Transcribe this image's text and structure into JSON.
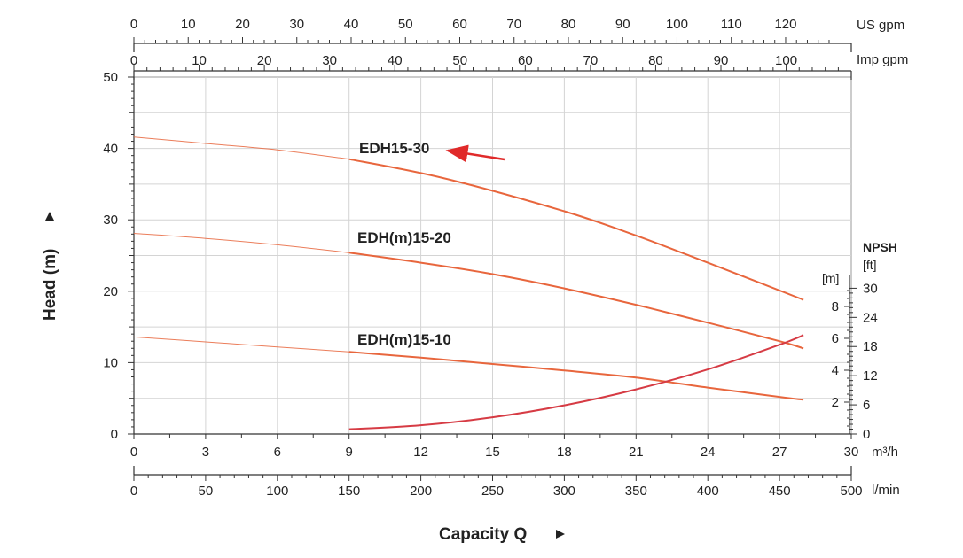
{
  "chart_data": {
    "type": "line",
    "title": "",
    "xlabel": "Capacity Q",
    "ylabel": "Head (m)",
    "x_unit": "m³/h",
    "xlim": [
      0,
      30
    ],
    "ylim": [
      0,
      50
    ],
    "x_ticks": [
      "0",
      "3",
      "6",
      "9",
      "12",
      "15",
      "18",
      "21",
      "24",
      "27",
      "30"
    ],
    "y_ticks": [
      "0",
      "10",
      "20",
      "30",
      "40",
      "50"
    ],
    "grid": true,
    "secondary_axes": {
      "us_gpm": {
        "label": "US gpm",
        "max": 132.086,
        "ticks": [
          "0",
          "10",
          "20",
          "30",
          "40",
          "50",
          "60",
          "70",
          "80",
          "90",
          "100",
          "110",
          "120"
        ]
      },
      "imp_gpm": {
        "label": "Imp gpm",
        "max": 109.985,
        "ticks": [
          "0",
          "10",
          "20",
          "30",
          "40",
          "50",
          "60",
          "70",
          "80",
          "90",
          "100"
        ]
      },
      "l_min": {
        "label": "l/min",
        "max": 500,
        "ticks": [
          "0",
          "50",
          "100",
          "150",
          "200",
          "250",
          "300",
          "350",
          "400",
          "450",
          "500"
        ]
      }
    },
    "npsh_axis": {
      "title": "NPSH",
      "m_label": "[m]",
      "ft_label": "[ft]",
      "m_max": 10,
      "m_ticks": [
        "2",
        "4",
        "6",
        "8"
      ],
      "ft_max": 32.8084,
      "ft_ticks": [
        "0",
        "6",
        "12",
        "18",
        "24",
        "30"
      ]
    },
    "series": [
      {
        "name": "EDH15-30",
        "label": "EDH15-30",
        "extrapolated": [
          [
            0,
            41.6
          ],
          [
            3,
            40.7
          ],
          [
            6,
            39.8
          ],
          [
            9,
            38.5
          ]
        ],
        "values": [
          [
            9,
            38.5
          ],
          [
            13,
            35.8
          ],
          [
            18,
            31.2
          ],
          [
            21,
            27.8
          ],
          [
            24,
            24
          ],
          [
            28,
            18.8
          ]
        ]
      },
      {
        "name": "EDH(m)15-20",
        "label": "EDH(m)15-20",
        "extrapolated": [
          [
            0,
            28.1
          ],
          [
            3,
            27.4
          ],
          [
            6,
            26.5
          ],
          [
            9,
            25.4
          ]
        ],
        "values": [
          [
            9,
            25.4
          ],
          [
            12,
            24
          ],
          [
            15,
            22.4
          ],
          [
            18,
            20.4
          ],
          [
            21,
            18.1
          ],
          [
            24,
            15.6
          ],
          [
            27,
            13
          ],
          [
            28,
            12
          ]
        ]
      },
      {
        "name": "EDH(m)15-10",
        "label": "EDH(m)15-10",
        "extrapolated": [
          [
            0,
            13.6
          ],
          [
            3,
            12.9
          ],
          [
            6,
            12.2
          ],
          [
            9,
            11.5
          ]
        ],
        "values": [
          [
            9,
            11.5
          ],
          [
            12,
            10.7
          ],
          [
            15,
            9.8
          ],
          [
            18,
            8.9
          ],
          [
            21,
            7.9
          ],
          [
            24,
            6.5
          ],
          [
            27,
            5.2
          ],
          [
            28,
            4.8
          ]
        ]
      },
      {
        "name": "NPSH",
        "label": "",
        "axis": "npsh_m",
        "values": [
          [
            9,
            0.3
          ],
          [
            12,
            0.55
          ],
          [
            15,
            1.05
          ],
          [
            18,
            1.8
          ],
          [
            21,
            2.8
          ],
          [
            24,
            4.05
          ],
          [
            27,
            5.6
          ],
          [
            28,
            6.2
          ]
        ]
      }
    ],
    "annotations": [
      {
        "type": "arrow",
        "text": "",
        "points_to": "EDH15-30",
        "color": "#d9262a"
      }
    ],
    "colors": {
      "pump_curves": "#e8663d",
      "npsh_curve": "#d63b44",
      "arrow": "#e02a2a",
      "grid": "#d4d4d4"
    }
  }
}
